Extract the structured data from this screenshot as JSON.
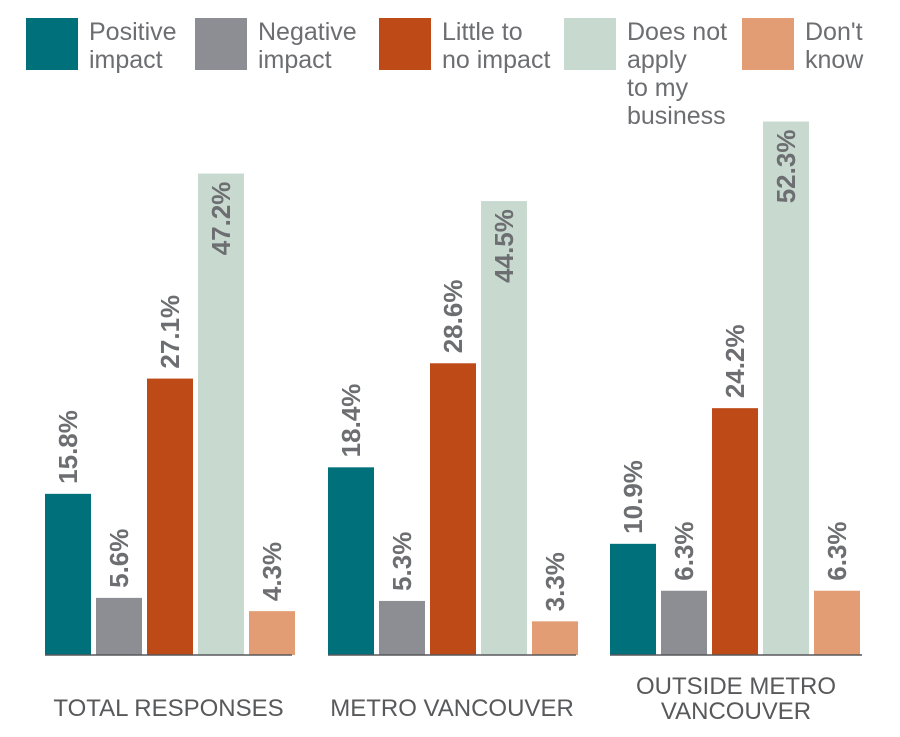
{
  "chart_data": {
    "type": "bar",
    "title": "",
    "xlabel": "",
    "ylabel": "",
    "ylim": [
      0,
      55
    ],
    "grid": false,
    "legend": "top",
    "categories": [
      [
        "TOTAL RESPONSES"
      ],
      [
        "METRO VANCOUVER"
      ],
      [
        "OUTSIDE METRO",
        "VANCOUVER"
      ]
    ],
    "series": [
      {
        "name": [
          "Positive",
          "impact"
        ],
        "color": "#00707a",
        "values": [
          15.8,
          18.4,
          10.9
        ],
        "labels": [
          "15.8%",
          "18.4%",
          "10.9%"
        ]
      },
      {
        "name": [
          "Negative",
          "impact"
        ],
        "color": "#8c8e93",
        "values": [
          5.6,
          5.3,
          6.3
        ],
        "labels": [
          "5.6%",
          "5.3%",
          "6.3%"
        ]
      },
      {
        "name": [
          "Little to",
          "no impact"
        ],
        "color": "#bd4a17",
        "values": [
          27.1,
          28.6,
          24.2
        ],
        "labels": [
          "27.1%",
          "28.6%",
          "24.2%"
        ]
      },
      {
        "name": [
          "Does not",
          "apply",
          "to my",
          "business"
        ],
        "color": "#c8d9cf",
        "values": [
          47.2,
          44.5,
          52.3
        ],
        "labels": [
          "47.2%",
          "44.5%",
          "52.3%"
        ]
      },
      {
        "name": [
          "Don't",
          "know"
        ],
        "color": "#e29d74",
        "values": [
          4.3,
          3.3,
          6.3
        ],
        "labels": [
          "4.3%",
          "3.3%",
          "6.3%"
        ]
      }
    ]
  }
}
